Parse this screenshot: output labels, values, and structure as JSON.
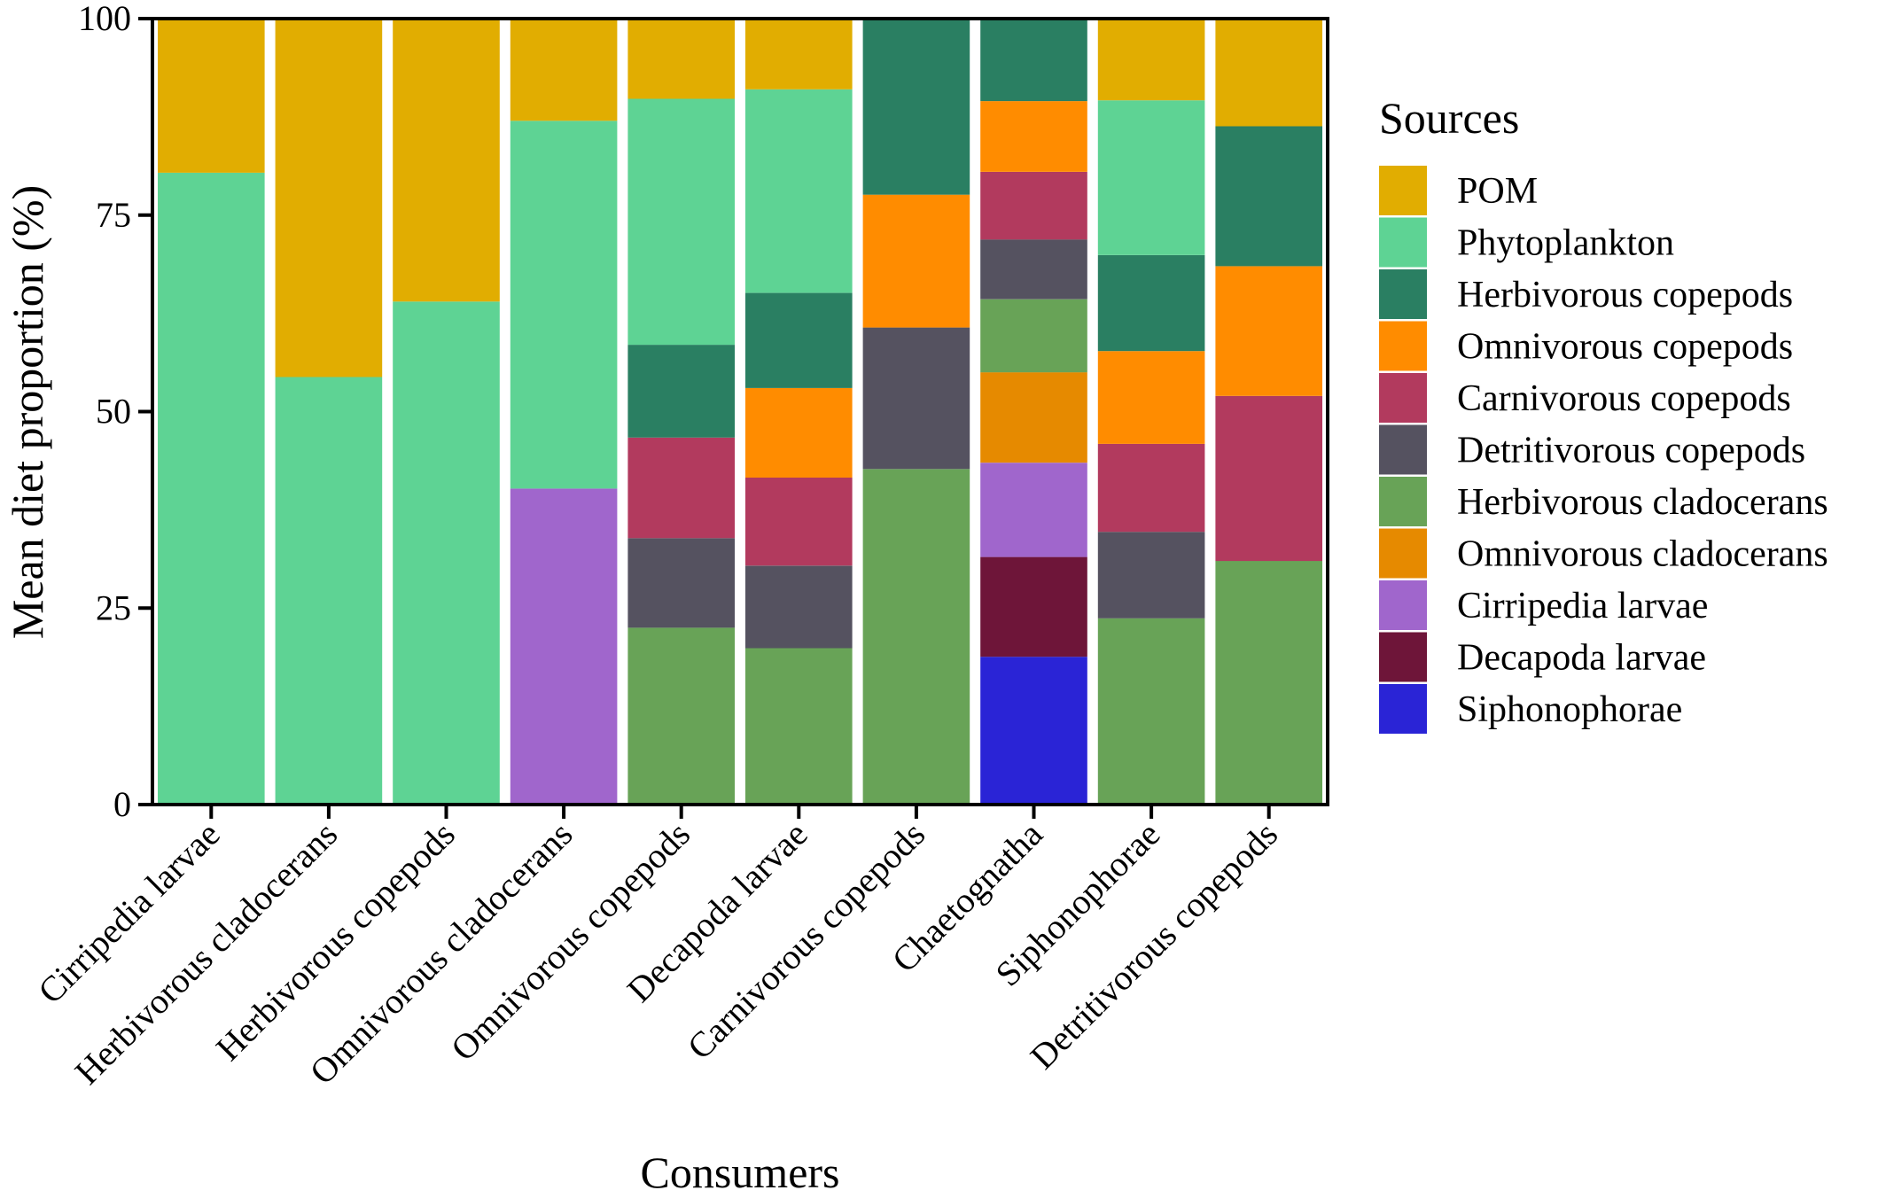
{
  "chart_data": {
    "type": "bar",
    "stacked": true,
    "xlabel": "Consumers",
    "ylabel": "Mean diet proportion (%)",
    "ylim": [
      0,
      100
    ],
    "yticks": [
      0,
      25,
      50,
      75,
      100
    ],
    "grid": false,
    "legend": {
      "title": "Sources",
      "position": "right"
    },
    "categories": [
      "Cirripedia larvae",
      "Herbivorous cladocerans",
      "Herbivorous copepods",
      "Omnivorous cladocerans",
      "Omnivorous copepods",
      "Decapoda larvae",
      "Carnivorous copepods",
      "Chaetognatha",
      "Siphonophorae",
      "Detritivorous copepods"
    ],
    "series": [
      {
        "name": "POM",
        "color": "#E1AD01",
        "values": [
          19.6,
          45.6,
          36.0,
          13.0,
          10.2,
          9.0,
          0,
          0,
          10.4,
          13.7
        ]
      },
      {
        "name": "Phytoplankton",
        "color": "#5ED394",
        "values": [
          80.4,
          54.4,
          64.0,
          46.8,
          31.3,
          25.9,
          0,
          0,
          19.7,
          0
        ]
      },
      {
        "name": "Herbivorous copepods",
        "color": "#2A7F62",
        "values": [
          0,
          0,
          0,
          0,
          11.8,
          12.1,
          22.4,
          10.5,
          12.2,
          17.8
        ]
      },
      {
        "name": "Omnivorous copepods",
        "color": "#FF8C00",
        "values": [
          0,
          0,
          0,
          0,
          0,
          11.4,
          16.9,
          9.0,
          11.8,
          16.5
        ]
      },
      {
        "name": "Carnivorous copepods",
        "color": "#B23A5E",
        "values": [
          0,
          0,
          0,
          0,
          12.8,
          11.2,
          0,
          8.6,
          11.2,
          21.0
        ]
      },
      {
        "name": "Detritivorous copepods",
        "color": "#555260",
        "values": [
          0,
          0,
          0,
          0,
          11.4,
          10.5,
          18.0,
          7.6,
          11.0,
          0
        ]
      },
      {
        "name": "Herbivorous cladocerans",
        "color": "#68A357",
        "values": [
          0,
          0,
          0,
          0,
          22.5,
          19.9,
          42.7,
          9.3,
          23.7,
          31.0
        ]
      },
      {
        "name": "Omnivorous cladocerans",
        "color": "#E68A00",
        "values": [
          0,
          0,
          0,
          0,
          0,
          0,
          0,
          11.5,
          0,
          0
        ]
      },
      {
        "name": "Cirripedia larvae",
        "color": "#A066CC",
        "values": [
          0,
          0,
          0,
          40.2,
          0,
          0,
          0,
          12.0,
          0,
          0
        ]
      },
      {
        "name": "Decapoda larvae",
        "color": "#6E1539",
        "values": [
          0,
          0,
          0,
          0,
          0,
          0,
          0,
          12.7,
          0,
          0
        ]
      },
      {
        "name": "Siphonophorae",
        "color": "#2A24D6",
        "values": [
          0,
          0,
          0,
          0,
          0,
          0,
          0,
          18.8,
          0,
          0
        ]
      }
    ]
  }
}
